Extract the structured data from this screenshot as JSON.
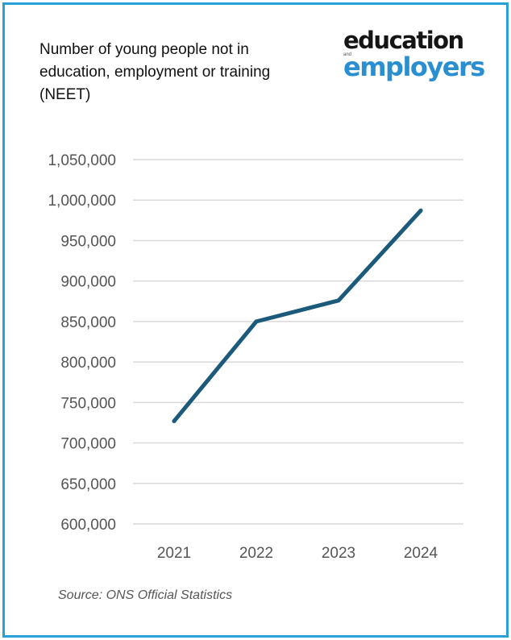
{
  "title": "Number of young people not in education, employment or training (NEET)",
  "logo": {
    "line1": "education",
    "connector": "and",
    "line2": "employers",
    "colors": {
      "line1": "#151515",
      "line2": "#2a8fd0"
    }
  },
  "source": "Source: ONS Official Statistics",
  "colors": {
    "frame": "#2a9fd8",
    "line": "#1b5a7a",
    "grid": "#d9d9d9",
    "tick_text": "#555555"
  },
  "chart_data": {
    "type": "line",
    "categories": [
      "2021",
      "2022",
      "2023",
      "2024"
    ],
    "series": [
      {
        "values": [
          727000,
          850000,
          876000,
          987000
        ]
      }
    ],
    "yticks": [
      "600,000",
      "650,000",
      "700,000",
      "750,000",
      "800,000",
      "850,000",
      "900,000",
      "950,000",
      "1,000,000",
      "1,050,000"
    ],
    "ylim": [
      600000,
      1050000
    ],
    "grid": true,
    "legend": "none"
  }
}
